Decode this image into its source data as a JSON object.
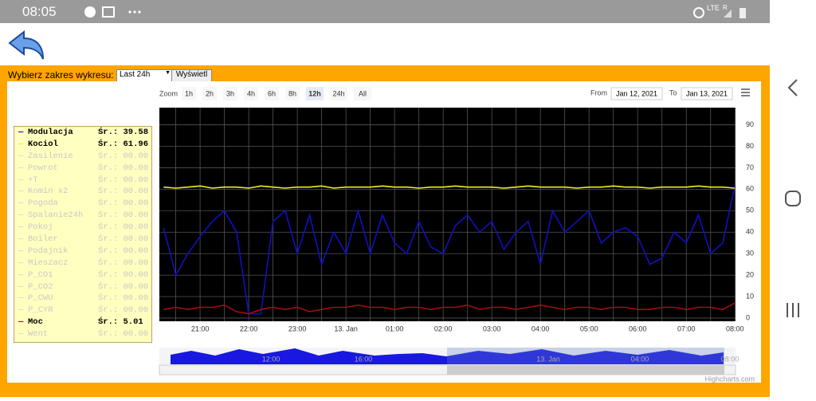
{
  "status_bar": {
    "time": "08:05",
    "network": "LTE",
    "roaming": "R"
  },
  "toolbar": {
    "range_label": "Wybierz zakres wykresu:",
    "range_select": "Last 24h",
    "show_button": "Wyświetl"
  },
  "range_selector": {
    "zoom_label": "Zoom",
    "buttons": [
      "1h",
      "2h",
      "3h",
      "4h",
      "6h",
      "8h",
      "12h",
      "24h",
      "All"
    ],
    "selected": "12h",
    "from_label": "From",
    "from": "Jan 12, 2021",
    "to_label": "To",
    "to": "Jan 13, 2021"
  },
  "legend": {
    "items": [
      {
        "name": "Modulacja",
        "average": "Śr.: 39.58",
        "color": "#1010c0",
        "visible": true
      },
      {
        "name": "Kociol",
        "average": "Śr.: 61.96",
        "color": "#f0f020",
        "visible": true
      },
      {
        "name": "Zasilenie",
        "average": "Śr.: 00.00",
        "color": "#cccccc",
        "visible": false
      },
      {
        "name": "Powrot",
        "average": "Śr.: 00.00",
        "color": "#cccccc",
        "visible": false
      },
      {
        "name": "+T",
        "average": "Śr.: 00.00",
        "color": "#cccccc",
        "visible": false
      },
      {
        "name": "Komin x2",
        "average": "Śr.: 00.00",
        "color": "#cccccc",
        "visible": false
      },
      {
        "name": "Pogoda",
        "average": "Śr.: 00.00",
        "color": "#cccccc",
        "visible": false
      },
      {
        "name": "Spalanie24h",
        "average": "Śr.: 00.00",
        "color": "#cccccc",
        "visible": false
      },
      {
        "name": "Pokoj",
        "average": "Śr.: 00.00",
        "color": "#cccccc",
        "visible": false
      },
      {
        "name": "Boiler",
        "average": "Śr.: 00.00",
        "color": "#cccccc",
        "visible": false
      },
      {
        "name": "Podajnik",
        "average": "Śr.: 00.00",
        "color": "#cccccc",
        "visible": false
      },
      {
        "name": "Mieszacz",
        "average": "Śr.: 00.00",
        "color": "#cccccc",
        "visible": false
      },
      {
        "name": "P_CO1",
        "average": "Śr.: 00.00",
        "color": "#cccccc",
        "visible": false
      },
      {
        "name": "P_CO2",
        "average": "Śr.: 00.00",
        "color": "#cccccc",
        "visible": false
      },
      {
        "name": "P_CWU",
        "average": "Śr.: 00.00",
        "color": "#cccccc",
        "visible": false
      },
      {
        "name": "P_CYR",
        "average": "Śr.: 00.00",
        "color": "#cccccc",
        "visible": false
      },
      {
        "name": "Moc",
        "average": "Śr.: 5.01",
        "color": "#a01010",
        "visible": true
      },
      {
        "name": "Went",
        "average": "Śr.: 00.00",
        "color": "#cccccc",
        "visible": false
      }
    ]
  },
  "chart_data": {
    "type": "line",
    "categories": [
      null,
      null,
      null,
      "21:00",
      null,
      null,
      null,
      "22:00",
      null,
      null,
      null,
      "23:00",
      null,
      null,
      null,
      "13. Jan",
      null,
      null,
      null,
      "01:00",
      null,
      null,
      null,
      "02:00",
      null,
      null,
      null,
      "03:00",
      null,
      null,
      null,
      "04:00",
      null,
      null,
      null,
      "05:00",
      null,
      null,
      null,
      "06:00",
      null,
      null,
      null,
      "07:00",
      null,
      null,
      null,
      "08:00"
    ],
    "series": [
      {
        "name": "Modulacja",
        "color": "#1010c0",
        "values": [
          42,
          20,
          30,
          38,
          45,
          50,
          40,
          2,
          2,
          45,
          50,
          30,
          48,
          25,
          40,
          30,
          50,
          30,
          48,
          35,
          30,
          45,
          33,
          30,
          43,
          48,
          40,
          45,
          32,
          40,
          45,
          25,
          50,
          40,
          45,
          50,
          35,
          40,
          42,
          38,
          25,
          28,
          40,
          35,
          48,
          30,
          35,
          62
        ]
      },
      {
        "name": "Kociol",
        "color": "#f0f020",
        "values": [
          61,
          60.5,
          61,
          61.5,
          60.5,
          61,
          61,
          60.5,
          61.5,
          61,
          60.5,
          61,
          61,
          61.5,
          60.5,
          61,
          61,
          61,
          61.5,
          61,
          61,
          60.5,
          61,
          61,
          61.5,
          61,
          61,
          61,
          60.5,
          61,
          61.5,
          61,
          61,
          61,
          60.5,
          61,
          61,
          61.5,
          61,
          61,
          60.5,
          61,
          61,
          61,
          61.5,
          61,
          61,
          60.5
        ]
      },
      {
        "name": "Moc",
        "color": "#a01010",
        "values": [
          4,
          5,
          4,
          5,
          5,
          6,
          3,
          2,
          4,
          5,
          4,
          5,
          3,
          4,
          5,
          5,
          6,
          5,
          5,
          4,
          5,
          5,
          4,
          5,
          5,
          6,
          4,
          5,
          5,
          4,
          5,
          6,
          5,
          4,
          5,
          5,
          4,
          5,
          5,
          4,
          4,
          5,
          5,
          4,
          5,
          5,
          4,
          7
        ]
      }
    ],
    "ylim": [
      -1.5,
      98
    ],
    "yticks": [
      0,
      10,
      20,
      30,
      40,
      50,
      60,
      70,
      80,
      90
    ],
    "grid": true,
    "background": "#000000",
    "navigator_labels": [
      "12:00",
      "16:00",
      "13. Jan",
      "04:00",
      "08:00"
    ],
    "credits": "Highcharts.com"
  }
}
